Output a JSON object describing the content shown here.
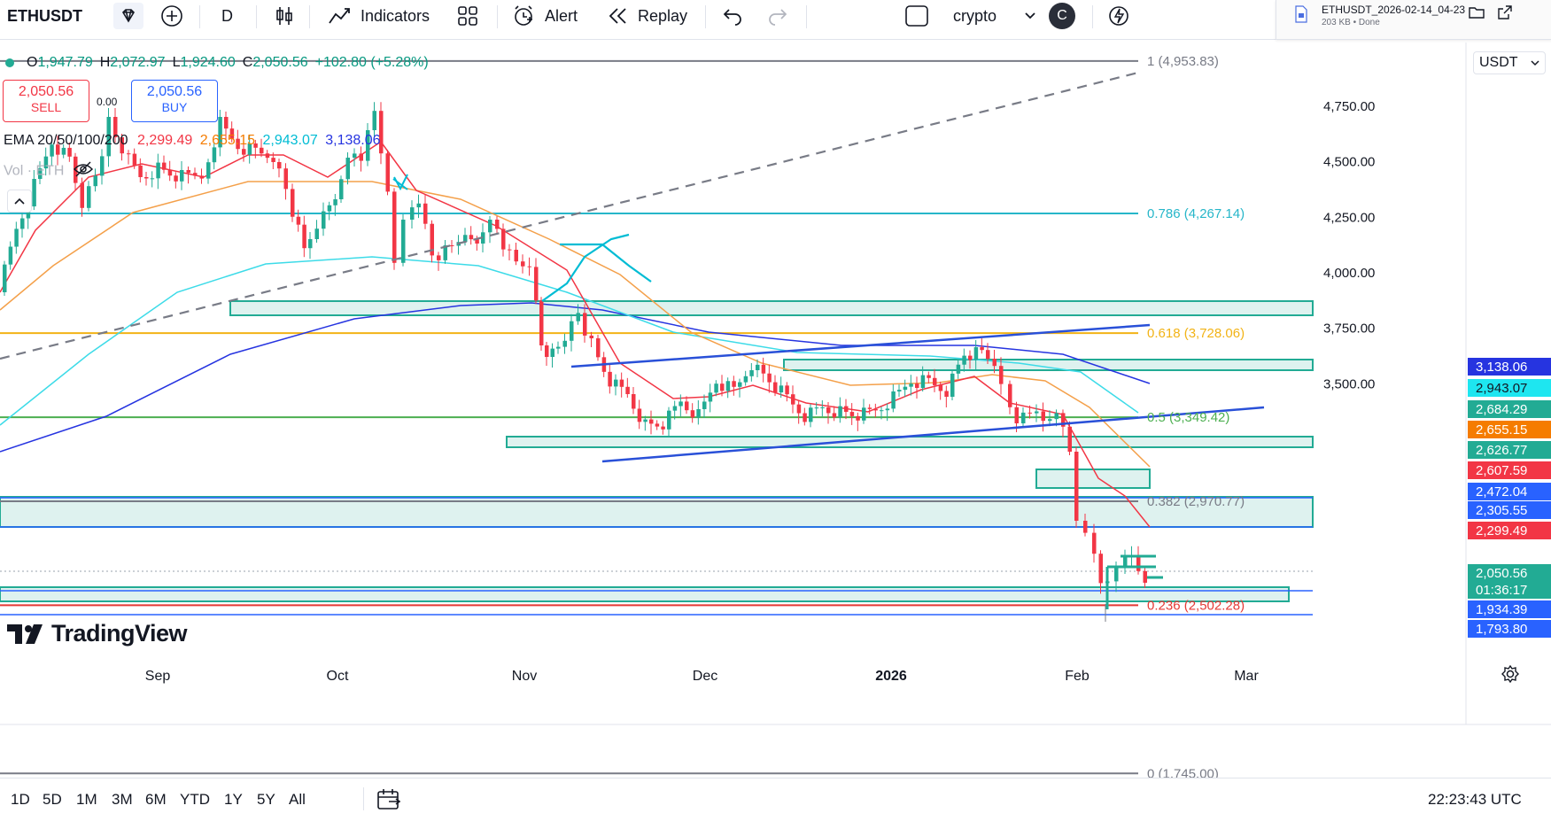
{
  "toolbar": {
    "symbol": "ETHUSDT",
    "interval": "D",
    "indicators_label": "Indicators",
    "alert_label": "Alert",
    "replay_label": "Replay",
    "layout_name": "crypto",
    "avatar_letter": "C"
  },
  "download": {
    "filename": "ETHUSDT_2026-02-14_04-23",
    "status": "203 KB • Done"
  },
  "legend": {
    "ohlc": {
      "o_label": "O",
      "o": "1,947.79",
      "h_label": "H",
      "h": "2,072.97",
      "l_label": "L",
      "l": "1,924.60",
      "c_label": "C",
      "c": "2,050.56",
      "change": "+102.80 (+5.28%)"
    },
    "sell_price": "2,050.56",
    "sell_label": "SELL",
    "buy_price": "2,050.56",
    "buy_label": "BUY",
    "spread": "0.00",
    "ema_label": "EMA 20/50/100/200",
    "ema_values": [
      "2,299.49",
      "2,655.15",
      "2,943.07",
      "3,138.06"
    ],
    "vol_label": "Vol · ETH"
  },
  "currency": "USDT",
  "price_axis": {
    "ticks": [
      "4,750.00",
      "4,500.00",
      "4,250.00",
      "4,000.00",
      "3,750.00",
      "3,500.00"
    ]
  },
  "fib_levels": [
    {
      "ratio": "1",
      "label": "1 (4,953.83)",
      "price": 4953.83,
      "color": "#787b86"
    },
    {
      "ratio": "0.786",
      "label": "0.786 (4,267.14)",
      "price": 4267.14,
      "color": "#26b6c9"
    },
    {
      "ratio": "0.618",
      "label": "0.618 (3,728.06)",
      "price": 3728.06,
      "color": "#f2b316"
    },
    {
      "ratio": "0.5",
      "label": "0.5 (3,349.42)",
      "price": 3349.42,
      "color": "#4caf50"
    },
    {
      "ratio": "0.382",
      "label": "0.382 (2,970.77)",
      "price": 2970.77,
      "color": "#787b86"
    },
    {
      "ratio": "0.236",
      "label": "0.236 (2,502.28)",
      "price": 2502.28,
      "color": "#e53935"
    },
    {
      "ratio": "0",
      "label": "0 (1,745.00)",
      "price": 1745.0,
      "color": "#787b86"
    }
  ],
  "axis_labels": [
    {
      "text": "3,138.06",
      "color": "#2634e0"
    },
    {
      "text": "2,943.07",
      "color": "#1ee6f0",
      "dark": true
    },
    {
      "text": "2,684.29",
      "color": "#22ab94"
    },
    {
      "text": "2,655.15",
      "color": "#f57c00"
    },
    {
      "text": "2,626.77",
      "color": "#22ab94"
    },
    {
      "text": "2,607.59",
      "color": "#f23645"
    },
    {
      "text": "2,472.04",
      "color": "#2962ff"
    },
    {
      "text": "2,305.55",
      "color": "#2962ff"
    },
    {
      "text": "2,299.49",
      "color": "#f23645"
    },
    {
      "text": "2,050.56",
      "color": "#22ab94"
    },
    {
      "text": "01:36:17",
      "color": "#22ab94"
    },
    {
      "text": "1,934.39",
      "color": "#2962ff"
    },
    {
      "text": "1,793.80",
      "color": "#2962ff"
    }
  ],
  "time_axis": [
    "Sep",
    "Oct",
    "Nov",
    "Dec",
    "2026",
    "Feb",
    "Mar"
  ],
  "bottom": {
    "ranges": [
      "1D",
      "5D",
      "1M",
      "3M",
      "6M",
      "YTD",
      "1Y",
      "5Y",
      "All"
    ],
    "clock": "22:23:43 UTC"
  },
  "brand": "TradingView",
  "colors": {
    "up": "#22ab94",
    "down": "#f23645",
    "zone": "#22ab94",
    "trendline": "#2950d8"
  }
}
